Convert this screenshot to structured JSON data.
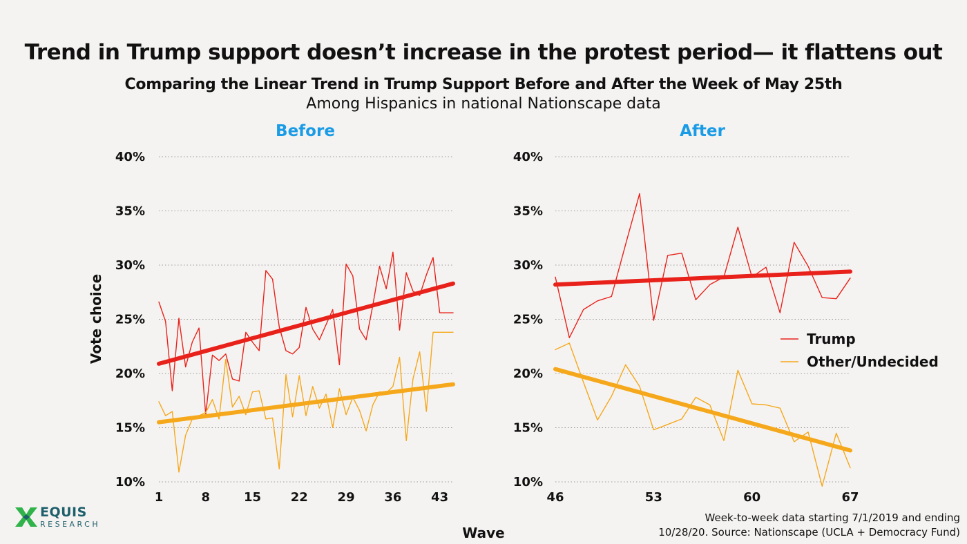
{
  "title": "Trend in Trump support doesn’t increase in the protest period— it flattens out",
  "subtitle": "Comparing the Linear Trend in Trump Support Before and After the Week of May 25th",
  "subtitle2": "Among Hispanics in national Nationscape data",
  "footer": {
    "source_line1": "Week-to-week data starting 7/1/2019 and ending",
    "source_line2": "10/28/20. Source: Nationscape (UCLA + Democracy Fund)",
    "logo_main": "EQUIS",
    "logo_sub": "RESEARCH"
  },
  "colors": {
    "trump": "#e8221b",
    "other": "#f5a81c",
    "grid": "#9a9a9a",
    "panel_title": "#1a9be6"
  },
  "chart_data": [
    {
      "type": "line",
      "panel": "Before",
      "title": "Before",
      "xlabel": "Wave",
      "ylabel": "Vote choice",
      "x_ticks": [
        1,
        8,
        15,
        22,
        29,
        36,
        43
      ],
      "xlim": [
        1,
        45
      ],
      "ylim": [
        10,
        40
      ],
      "y_ticks": [
        "10%",
        "15%",
        "20%",
        "25%",
        "30%",
        "35%",
        "40%"
      ],
      "x": [
        1,
        2,
        3,
        4,
        5,
        6,
        7,
        8,
        9,
        10,
        11,
        12,
        13,
        14,
        15,
        16,
        17,
        18,
        19,
        20,
        21,
        22,
        23,
        24,
        25,
        26,
        27,
        28,
        29,
        30,
        31,
        32,
        33,
        34,
        35,
        36,
        37,
        38,
        39,
        40,
        41,
        42,
        43,
        44,
        45
      ],
      "series": [
        {
          "name": "Trump",
          "values": [
            26.6,
            24.8,
            18.4,
            25.1,
            20.6,
            22.9,
            24.2,
            16.2,
            21.7,
            21.2,
            21.8,
            19.5,
            19.3,
            23.8,
            22.9,
            22.1,
            29.5,
            28.7,
            24.3,
            22.1,
            21.8,
            22.4,
            26.1,
            24.1,
            23.1,
            24.5,
            25.9,
            20.8,
            30.1,
            29.0,
            24.1,
            23.1,
            26.3,
            29.9,
            27.8,
            31.2,
            24.0,
            29.3,
            27.6,
            27.2,
            29.1,
            30.7,
            25.6,
            25.6,
            25.6
          ]
        },
        {
          "name": "Other/Undecided",
          "values": [
            17.4,
            16.1,
            16.5,
            10.9,
            14.3,
            15.8,
            16.1,
            16.4,
            17.6,
            15.8,
            21.3,
            16.9,
            17.9,
            16.2,
            18.3,
            18.4,
            15.8,
            15.9,
            11.2,
            19.9,
            16.0,
            19.8,
            16.1,
            18.8,
            16.8,
            18.1,
            15.0,
            18.6,
            16.2,
            17.8,
            16.6,
            14.7,
            17.1,
            18.3,
            18.2,
            18.8,
            21.5,
            13.8,
            19.5,
            22.0,
            16.5,
            23.8,
            23.8,
            23.8,
            23.8
          ]
        },
        {
          "name": "Trump trend",
          "values": [
            20.9,
            28.3
          ],
          "x": [
            1,
            45
          ]
        },
        {
          "name": "Other/Undecided trend",
          "values": [
            15.5,
            19.0
          ],
          "x": [
            1,
            45
          ]
        }
      ]
    },
    {
      "type": "line",
      "panel": "After",
      "title": "After",
      "xlabel": "Wave",
      "ylabel": "",
      "x_ticks": [
        46,
        53,
        60,
        67
      ],
      "xlim": [
        46,
        67
      ],
      "ylim": [
        10,
        40
      ],
      "y_ticks": [
        "10%",
        "15%",
        "20%",
        "25%",
        "30%",
        "35%",
        "40%"
      ],
      "x": [
        46,
        47,
        48,
        49,
        50,
        51,
        52,
        53,
        54,
        55,
        56,
        57,
        58,
        59,
        60,
        61,
        62,
        63,
        64,
        65,
        66,
        67
      ],
      "series": [
        {
          "name": "Trump",
          "values": [
            28.9,
            23.3,
            25.9,
            26.7,
            27.1,
            31.9,
            36.6,
            24.9,
            30.9,
            31.1,
            26.8,
            28.2,
            28.9,
            33.5,
            28.9,
            29.8,
            25.6,
            32.1,
            29.9,
            27.0,
            26.9,
            28.8
          ]
        },
        {
          "name": "Other/Undecided",
          "values": [
            22.2,
            22.8,
            19.2,
            15.7,
            17.9,
            20.8,
            18.8,
            14.8,
            15.3,
            15.8,
            17.8,
            17.1,
            13.8,
            20.3,
            17.2,
            17.1,
            16.8,
            13.7,
            14.6,
            9.6,
            14.5,
            11.3
          ]
        },
        {
          "name": "Trump trend",
          "values": [
            28.2,
            29.4
          ],
          "x": [
            46,
            67
          ]
        },
        {
          "name": "Other/Undecided trend",
          "values": [
            20.4,
            12.9
          ],
          "x": [
            46,
            67
          ]
        }
      ],
      "legend": [
        {
          "name": "Trump",
          "color": "#e8221b"
        },
        {
          "name": "Other/Undecided",
          "color": "#f5a81c"
        }
      ],
      "legend_position": "right"
    }
  ]
}
